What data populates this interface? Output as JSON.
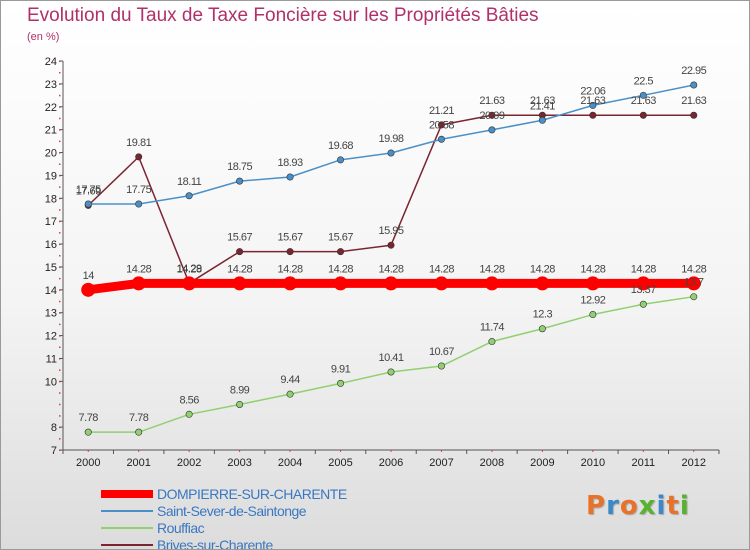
{
  "title": "Evolution du Taux de Taxe Foncière sur les Propriétés Bâties",
  "subtitle": "(en %)",
  "logo": "Proxiti",
  "colors": {
    "title": "#b0306a",
    "logo_letters": [
      "#e8722a",
      "#3b89c9",
      "#e8722a",
      "#57b32e",
      "#3b89c9",
      "#e8722a",
      "#57b32e"
    ]
  },
  "chart_data": {
    "type": "line",
    "title": "Evolution du Taux de Taxe Foncière sur les Propriétés Bâties",
    "ylabel": "(en %)",
    "xlabel": "",
    "ylim": [
      7,
      24
    ],
    "yticks": [
      7,
      8,
      10,
      11,
      12,
      13,
      14,
      15,
      16,
      17,
      18,
      19,
      20,
      21,
      22,
      23,
      24
    ],
    "grid": false,
    "legend_position": "bottom-left",
    "x": [
      "2000",
      "2001",
      "2002",
      "2003",
      "2004",
      "2005",
      "2006",
      "2007",
      "2008",
      "2009",
      "2010",
      "2011",
      "2012"
    ],
    "series": [
      {
        "name": "DOMPIERRE-SUR-CHARENTE",
        "color": "#ff0000",
        "values": [
          14,
          14.28,
          14.28,
          14.28,
          14.28,
          14.28,
          14.28,
          14.28,
          14.28,
          14.28,
          14.28,
          14.28,
          14.28
        ],
        "labels": [
          "14",
          "14.28",
          "14.28",
          "14.28",
          "14.28",
          "14.28",
          "14.28",
          "14.28",
          "14.28",
          "14.28",
          "14.28",
          "14.28",
          "14.28"
        ]
      },
      {
        "name": "Saint-Sever-de-Saintonge",
        "color": "#4a90c8",
        "values": [
          17.75,
          17.75,
          18.11,
          18.75,
          18.93,
          19.68,
          19.98,
          20.58,
          20.99,
          21.41,
          22.06,
          22.5,
          22.95
        ],
        "labels": [
          "17.75",
          "17.75",
          "18.11",
          "18.75",
          "18.93",
          "19.68",
          "19.98",
          "20.58",
          "20.99",
          "21.41",
          "22.06",
          "22.5",
          "22.95"
        ]
      },
      {
        "name": "Rouffiac",
        "color": "#90d070",
        "values": [
          7.78,
          7.78,
          8.56,
          8.99,
          9.44,
          9.91,
          10.41,
          10.67,
          11.74,
          12.3,
          12.92,
          13.37,
          13.7
        ],
        "labels": [
          "7.78",
          "7.78",
          "8.56",
          "8.99",
          "9.44",
          "9.91",
          "10.41",
          "10.67",
          "11.74",
          "12.3",
          "12.92",
          "13.37",
          "13.7"
        ]
      },
      {
        "name": "Brives-sur-Charente",
        "color": "#7a2530",
        "values": [
          17.69,
          19.81,
          14.29,
          15.67,
          15.67,
          15.67,
          15.95,
          21.21,
          21.63,
          21.63,
          21.63,
          21.63,
          21.63
        ],
        "labels": [
          "17.69",
          "19.81",
          "14.29",
          "15.67",
          "15.67",
          "15.67",
          "15.95",
          "21.21",
          "21.63",
          "21.63",
          "21.63",
          "21.63",
          "21.63"
        ]
      }
    ]
  }
}
